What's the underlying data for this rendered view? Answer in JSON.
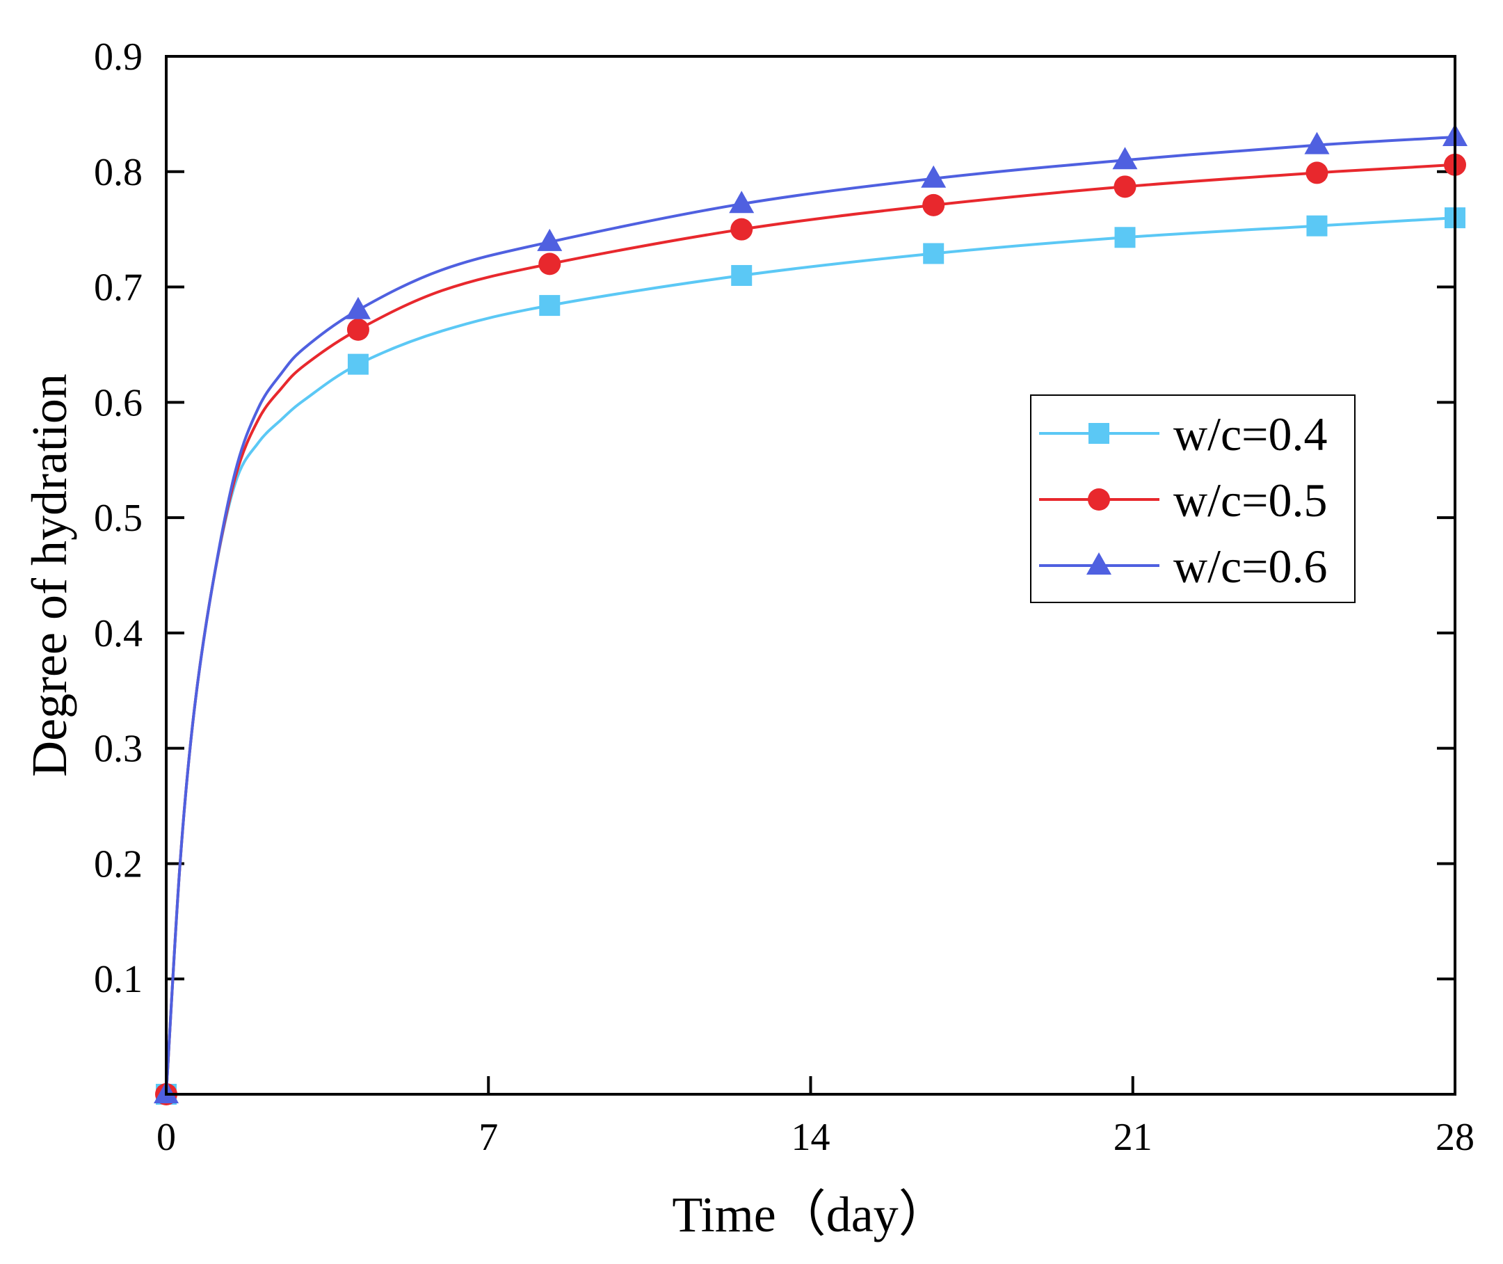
{
  "chart_data": {
    "type": "line",
    "title": "",
    "xlabel": "Time（day）",
    "ylabel": "Degree of hydration",
    "xlim": [
      0,
      28
    ],
    "ylim": [
      0,
      0.9
    ],
    "xticks": [
      0,
      7,
      14,
      21,
      28
    ],
    "xtick_labels": [
      "0",
      "7",
      "14",
      "21",
      "28"
    ],
    "yticks": [
      0.1,
      0.2,
      0.3,
      0.4,
      0.5,
      0.6,
      0.7,
      0.8,
      0.9
    ],
    "ytick_labels": [
      "0.1",
      "0.2",
      "0.3",
      "0.4",
      "0.5",
      "0.6",
      "0.7",
      "0.8",
      "0.9"
    ],
    "legend_position": "center-right",
    "series": [
      {
        "name": "w/c=0.4",
        "color": "#5bc8f5",
        "marker": "square",
        "markers": [
          [
            0,
            0
          ],
          [
            4.17,
            0.633
          ],
          [
            8.33,
            0.684
          ],
          [
            12.5,
            0.71
          ],
          [
            16.67,
            0.729
          ],
          [
            20.83,
            0.743
          ],
          [
            25,
            0.753
          ],
          [
            28,
            0.76
          ]
        ],
        "curve": [
          [
            0,
            0
          ],
          [
            0.3,
            0.2
          ],
          [
            0.6,
            0.33
          ],
          [
            1.0,
            0.44
          ],
          [
            1.5,
            0.53
          ],
          [
            2.0,
            0.565
          ],
          [
            2.5,
            0.585
          ],
          [
            3.0,
            0.602
          ],
          [
            4.17,
            0.633
          ],
          [
            6,
            0.662
          ],
          [
            8.33,
            0.684
          ],
          [
            12.5,
            0.71
          ],
          [
            16.67,
            0.729
          ],
          [
            20.83,
            0.743
          ],
          [
            25,
            0.753
          ],
          [
            28,
            0.76
          ]
        ]
      },
      {
        "name": "w/c=0.5",
        "color": "#e8282d",
        "marker": "circle",
        "markers": [
          [
            0,
            0
          ],
          [
            4.17,
            0.663
          ],
          [
            8.33,
            0.72
          ],
          [
            12.5,
            0.75
          ],
          [
            16.67,
            0.771
          ],
          [
            20.83,
            0.787
          ],
          [
            25,
            0.799
          ],
          [
            28,
            0.806
          ]
        ],
        "curve": [
          [
            0,
            0
          ],
          [
            0.3,
            0.2
          ],
          [
            0.6,
            0.33
          ],
          [
            1.0,
            0.44
          ],
          [
            1.5,
            0.535
          ],
          [
            2.0,
            0.585
          ],
          [
            2.5,
            0.612
          ],
          [
            3.0,
            0.632
          ],
          [
            4.17,
            0.663
          ],
          [
            6,
            0.697
          ],
          [
            8.33,
            0.72
          ],
          [
            12.5,
            0.75
          ],
          [
            16.67,
            0.771
          ],
          [
            20.83,
            0.787
          ],
          [
            25,
            0.799
          ],
          [
            28,
            0.806
          ]
        ]
      },
      {
        "name": "w/c=0.6",
        "color": "#4f60e0",
        "marker": "triangle",
        "markers": [
          [
            0,
            0
          ],
          [
            4.17,
            0.68
          ],
          [
            8.33,
            0.739
          ],
          [
            12.5,
            0.772
          ],
          [
            16.67,
            0.794
          ],
          [
            20.83,
            0.81
          ],
          [
            25,
            0.823
          ],
          [
            28,
            0.83
          ]
        ],
        "curve": [
          [
            0,
            0
          ],
          [
            0.3,
            0.2
          ],
          [
            0.6,
            0.33
          ],
          [
            1.0,
            0.44
          ],
          [
            1.5,
            0.54
          ],
          [
            2.0,
            0.595
          ],
          [
            2.5,
            0.625
          ],
          [
            3.0,
            0.647
          ],
          [
            4.17,
            0.68
          ],
          [
            6,
            0.715
          ],
          [
            8.33,
            0.739
          ],
          [
            12.5,
            0.772
          ],
          [
            16.67,
            0.794
          ],
          [
            20.83,
            0.81
          ],
          [
            25,
            0.823
          ],
          [
            28,
            0.83
          ]
        ]
      }
    ]
  }
}
